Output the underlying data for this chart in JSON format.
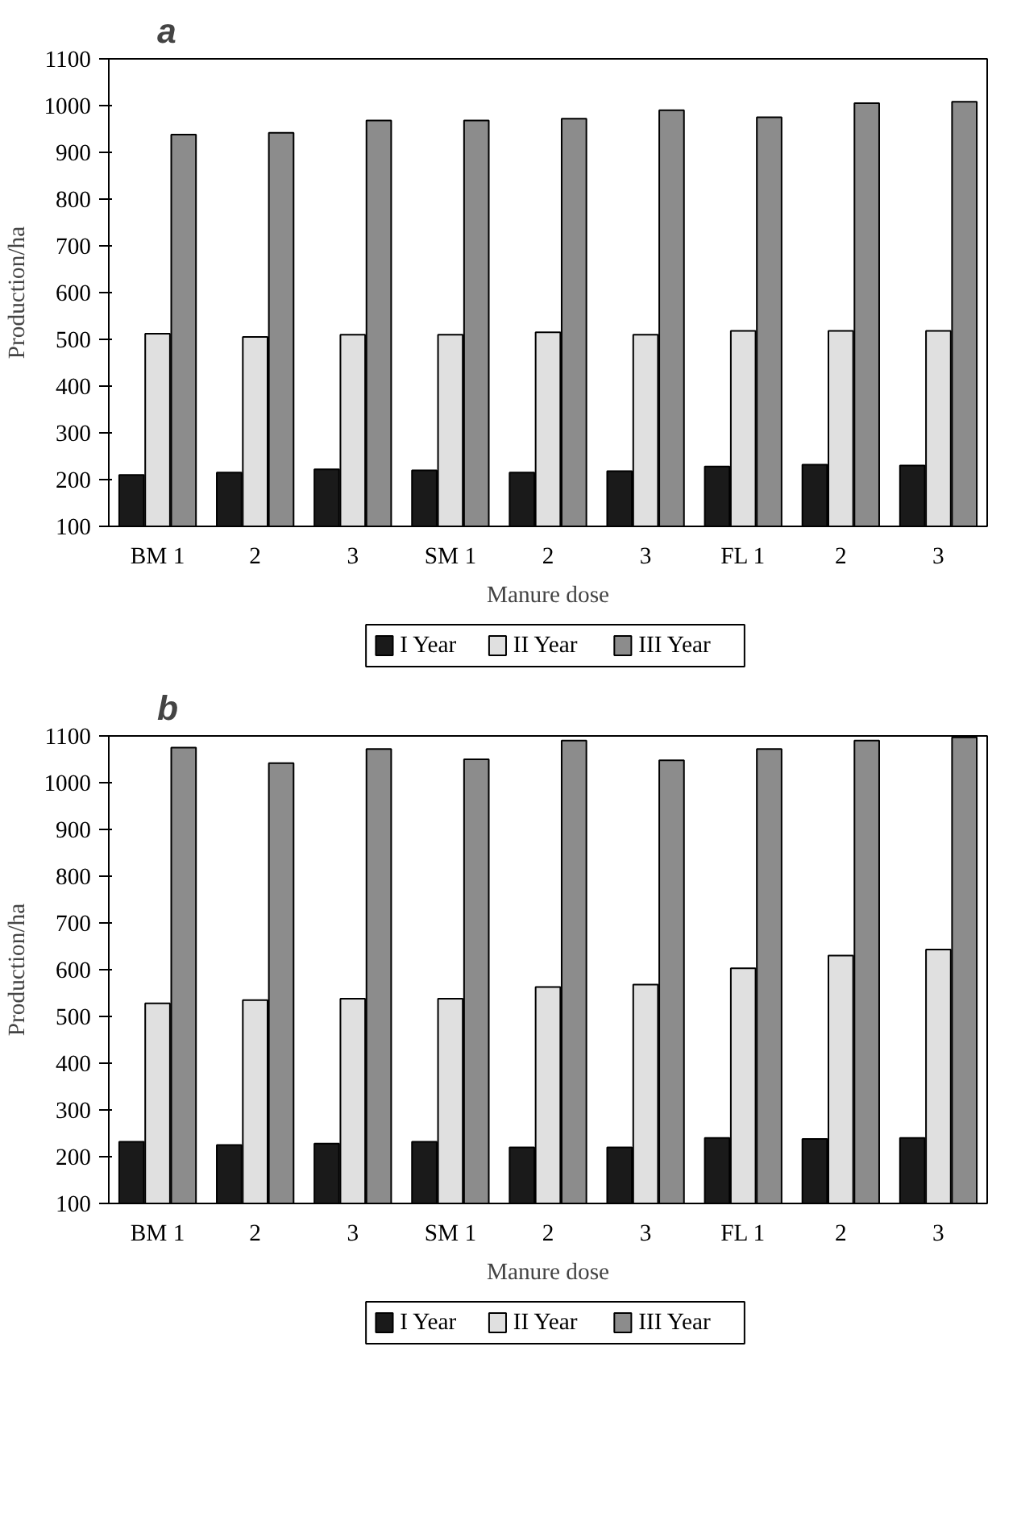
{
  "chart_data": [
    {
      "type": "bar",
      "title": "a",
      "xlabel": "Manure dose",
      "ylabel": "Production/ha",
      "categories": [
        "BM 1",
        "2",
        "3",
        "SM 1",
        "2",
        "3",
        "FL 1",
        "2",
        "3"
      ],
      "series": [
        {
          "name": "I Year",
          "color": "#1a1a1a",
          "values": [
            210,
            215,
            222,
            220,
            215,
            218,
            228,
            232,
            230
          ]
        },
        {
          "name": "II Year",
          "color": "#e0e0e0",
          "values": [
            512,
            505,
            510,
            510,
            515,
            510,
            518,
            518,
            518
          ]
        },
        {
          "name": "III Year",
          "color": "#8c8c8c",
          "values": [
            938,
            942,
            968,
            968,
            972,
            990,
            975,
            1005,
            1008
          ]
        }
      ],
      "ylim": [
        100,
        1100
      ],
      "yticks": [
        100,
        200,
        300,
        400,
        500,
        600,
        700,
        800,
        900,
        1000,
        1100
      ],
      "grid": false,
      "legend": "bottom"
    },
    {
      "type": "bar",
      "title": "b",
      "xlabel": "Manure dose",
      "ylabel": "Production/ha",
      "categories": [
        "BM 1",
        "2",
        "3",
        "SM 1",
        "2",
        "3",
        "FL 1",
        "2",
        "3"
      ],
      "series": [
        {
          "name": "I Year",
          "color": "#1a1a1a",
          "values": [
            232,
            225,
            228,
            232,
            220,
            220,
            240,
            238,
            240
          ]
        },
        {
          "name": "II Year",
          "color": "#e0e0e0",
          "values": [
            528,
            535,
            538,
            538,
            563,
            568,
            603,
            630,
            643
          ]
        },
        {
          "name": "III Year",
          "color": "#8c8c8c",
          "values": [
            1075,
            1042,
            1072,
            1050,
            1090,
            1048,
            1072,
            1090,
            1097
          ]
        }
      ],
      "ylim": [
        100,
        1100
      ],
      "yticks": [
        100,
        200,
        300,
        400,
        500,
        600,
        700,
        800,
        900,
        1000,
        1100
      ],
      "grid": false,
      "legend": "bottom"
    }
  ]
}
